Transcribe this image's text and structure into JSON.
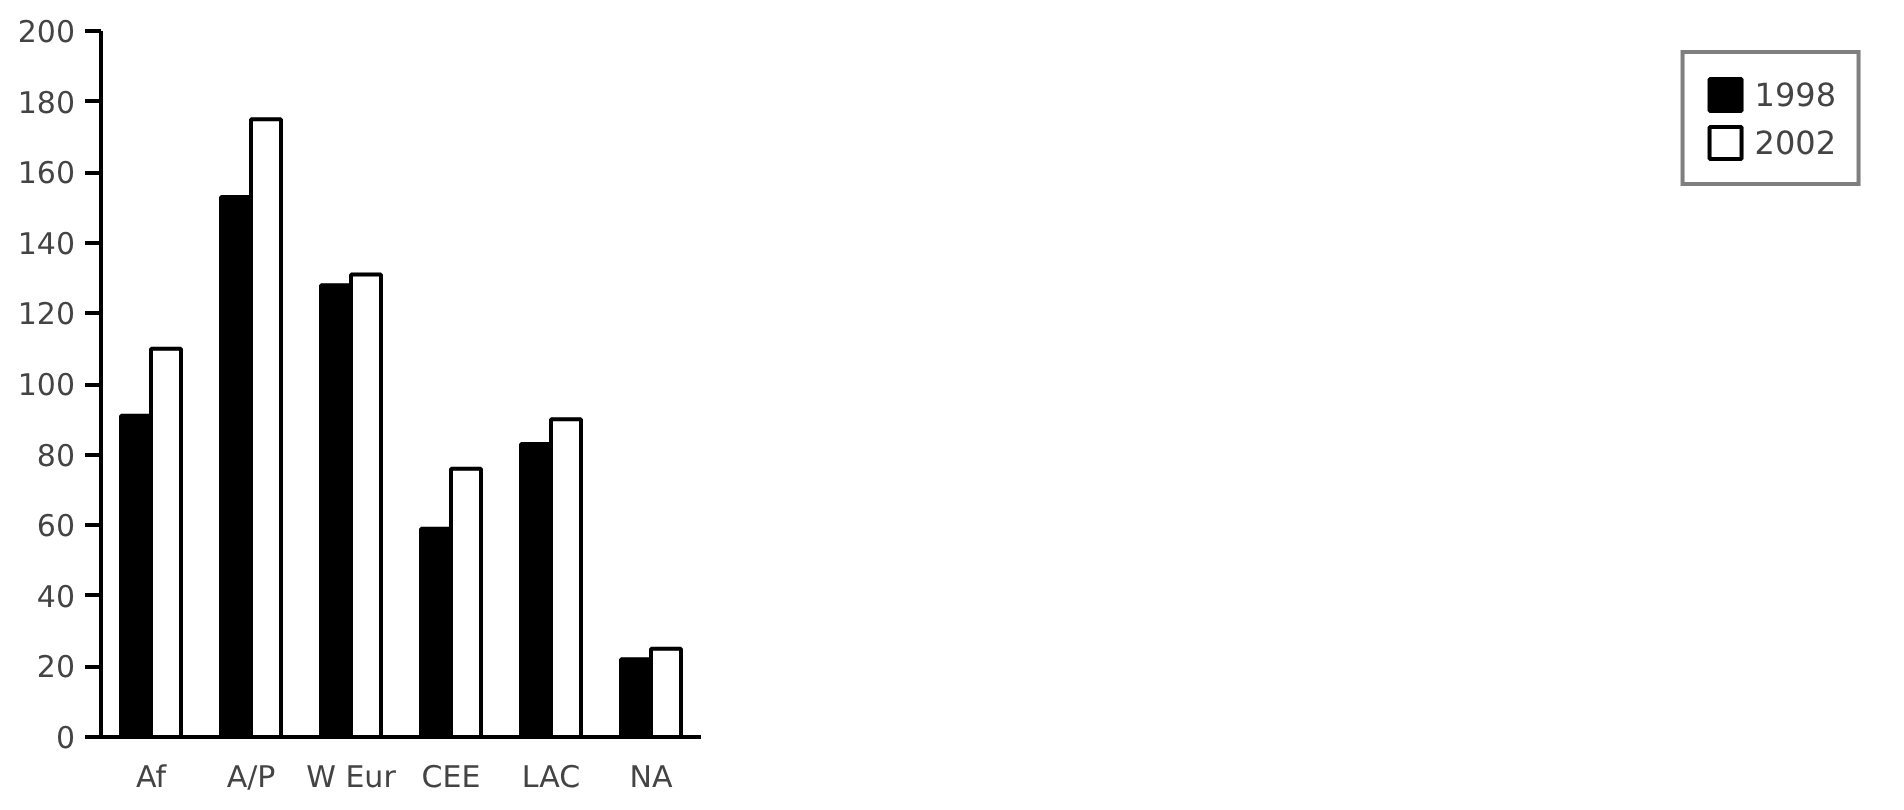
{
  "chart_data": {
    "type": "bar",
    "categories": [
      "Af",
      "A/P",
      "W Eur",
      "CEE",
      "LAC",
      "NA"
    ],
    "series": [
      {
        "name": "1998",
        "color": "#000000",
        "values": [
          91,
          153,
          128,
          59,
          83,
          22
        ]
      },
      {
        "name": "2002",
        "color": "#ffffff",
        "values": [
          110,
          175,
          131,
          76,
          90,
          25
        ]
      }
    ],
    "ylim": [
      0,
      200
    ],
    "yticks": [
      0,
      20,
      40,
      60,
      80,
      100,
      120,
      140,
      160,
      180,
      200
    ],
    "grid": false,
    "legend": "right"
  }
}
